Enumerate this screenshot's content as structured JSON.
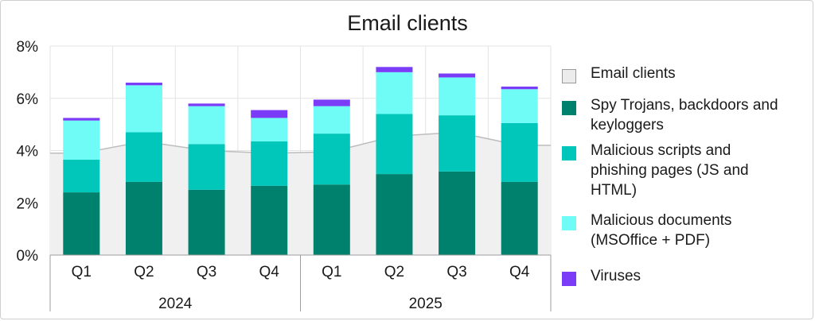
{
  "chart_data": {
    "type": "bar",
    "stacked": true,
    "title": "Email clients",
    "xlabel": "",
    "ylabel": "",
    "ylim": [
      0,
      8
    ],
    "yticks": [
      0,
      2,
      4,
      6,
      8
    ],
    "ytick_labels": [
      "0%",
      "2%",
      "4%",
      "6%",
      "8%"
    ],
    "grid": true,
    "legend_position": "right",
    "categories": [
      "Q1",
      "Q2",
      "Q3",
      "Q4",
      "Q1",
      "Q2",
      "Q3",
      "Q4"
    ],
    "groups": [
      {
        "label": "2024",
        "count": 4
      },
      {
        "label": "2025",
        "count": 4
      }
    ],
    "area_series": {
      "name": "Email clients",
      "color": "#f0f0f0",
      "stroke": "#bdbdbd",
      "values": [
        3.9,
        4.35,
        4.0,
        3.9,
        3.95,
        4.55,
        4.7,
        4.2
      ]
    },
    "series": [
      {
        "name": "Spy Trojans, backdoors and keyloggers",
        "color": "#00816d",
        "values": [
          2.4,
          2.8,
          2.5,
          2.65,
          2.7,
          3.1,
          3.2,
          2.8
        ]
      },
      {
        "name": "Malicious scripts and phishing pages (JS and HTML)",
        "color": "#00c7b9",
        "values": [
          1.25,
          1.9,
          1.75,
          1.7,
          1.95,
          2.3,
          2.15,
          2.25
        ]
      },
      {
        "name": "Malicious documents (MSOffice + PDF)",
        "color": "#6ffbf6",
        "values": [
          1.5,
          1.8,
          1.45,
          0.9,
          1.05,
          1.6,
          1.45,
          1.3
        ]
      },
      {
        "name": "Viruses",
        "color": "#7b3cf7",
        "values": [
          0.1,
          0.1,
          0.1,
          0.3,
          0.25,
          0.2,
          0.15,
          0.1
        ]
      }
    ]
  },
  "legend": [
    {
      "label_lines": [
        "Email clients"
      ],
      "color": "#ececec",
      "border": "#9a9a9a"
    },
    {
      "label_lines": [
        "Spy Trojans, backdoors and",
        "keyloggers"
      ],
      "color": "#00816d"
    },
    {
      "label_lines": [
        "Malicious scripts and",
        "phishing pages (JS and",
        "HTML)"
      ],
      "color": "#00c7b9"
    },
    {
      "label_lines": [
        "Malicious documents",
        "(MSOffice + PDF)"
      ],
      "color": "#6ffbf6"
    },
    {
      "label_lines": [
        "Viruses"
      ],
      "color": "#7b3cf7"
    }
  ]
}
